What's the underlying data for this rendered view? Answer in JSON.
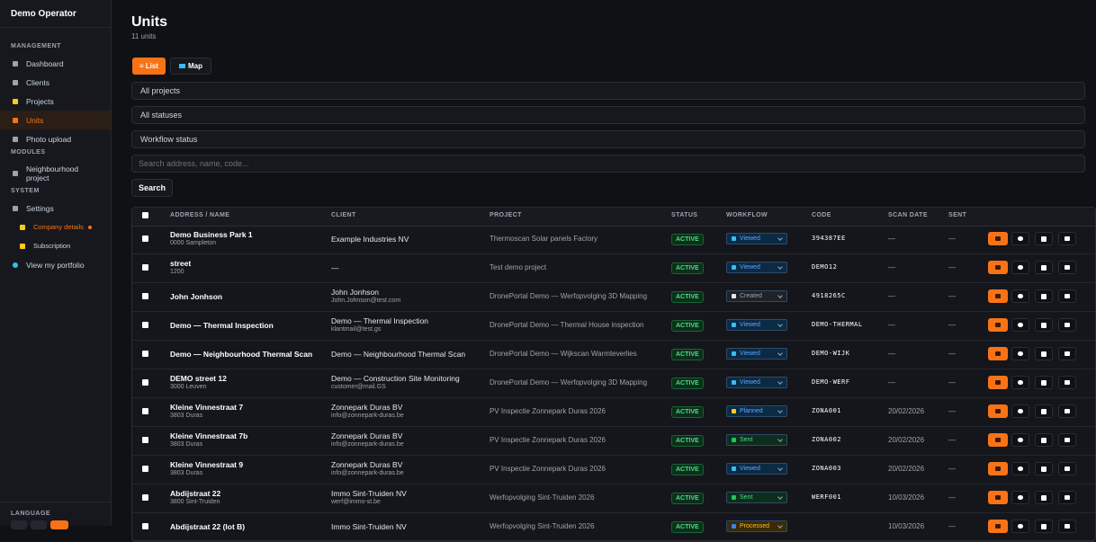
{
  "sidebar": {
    "brand": "Demo Operator",
    "sections": [
      {
        "title": "MANAGEMENT",
        "items": [
          "Dashboard",
          "Clients",
          "Projects",
          "Units",
          "Photo upload"
        ]
      },
      {
        "title": "MODULES",
        "items": [
          "Neighbourhood project"
        ]
      },
      {
        "title": "SYSTEM",
        "items": [
          "Settings",
          "Company details",
          "Subscription",
          "View my portfolio"
        ]
      }
    ],
    "language_label": "LANGUAGE"
  },
  "header": {
    "title": "Units",
    "subtitle": "11 units"
  },
  "view_toggle": [
    "List",
    "Map"
  ],
  "filters": {
    "project": "All projects",
    "status": "All statuses",
    "workflow": "Workflow status",
    "search_placeholder": "Search address, name, code...",
    "search_button": "Search"
  },
  "table": {
    "columns": [
      "ADDRESS / NAME",
      "CLIENT",
      "PROJECT",
      "STATUS",
      "WORKFLOW",
      "CODE",
      "SCAN DATE",
      "SENT"
    ],
    "rows": [
      {
        "address": "Demo Business Park 1",
        "locality": "0000 Sampleton",
        "client": "Example Industries NV",
        "project": "Thermoscan Solar panels Factory",
        "status": "ACTIVE",
        "workflow": "Viewed",
        "code": "394387EE",
        "scan_date": "—",
        "sent": "—"
      },
      {
        "address": "street",
        "locality": "1200",
        "client": "—",
        "project": "Test demo project",
        "status": "ACTIVE",
        "workflow": "Viewed",
        "code": "DEMO12",
        "scan_date": "—",
        "sent": "—"
      },
      {
        "address": "John Jonhson",
        "client": "John Jonhson",
        "client_email": "John.Johnson@test.com",
        "project": "DronePortal Demo — Werfopvolging 3D Mapping",
        "status": "ACTIVE",
        "workflow": "Created",
        "code": "4918265C",
        "scan_date": "—",
        "sent": "—"
      },
      {
        "address": "Demo — Thermal Inspection",
        "client": "Demo — Thermal Inspection",
        "client_email": "klantmail@test.gs",
        "project": "DronePortal Demo — Thermal House inspection",
        "status": "ACTIVE",
        "workflow": "Viewed",
        "code": "DEMO-THERMAL",
        "scan_date": "—",
        "sent": "—"
      },
      {
        "address": "Demo — Neighbourhood Thermal Scan",
        "client": "Demo — Neighbourhood Thermal Scan",
        "project": "DronePortal Demo — Wijkscan Warmteverlies",
        "status": "ACTIVE",
        "workflow": "Viewed",
        "code": "DEMO-WIJK",
        "scan_date": "—",
        "sent": "—"
      },
      {
        "address": "DEMO street 12",
        "locality": "3000 Leuven",
        "client": "Demo — Construction Site Monitoring",
        "client_email": "customer@mail.GS",
        "project": "DronePortal Demo — Werfopvolging 3D Mapping",
        "status": "ACTIVE",
        "workflow": "Viewed",
        "code": "DEMO-WERF",
        "scan_date": "—",
        "sent": "—"
      },
      {
        "address": "Kleine Vinnestraat 7",
        "locality": "3803 Duras",
        "client": "Zonnepark Duras BV",
        "client_email": "info@zonnepark-duras.be",
        "project": "PV Inspectie Zonnepark Duras 2026",
        "status": "ACTIVE",
        "workflow": "Planned",
        "code": "ZONA001",
        "scan_date": "20/02/2026",
        "sent": "—"
      },
      {
        "address": "Kleine Vinnestraat 7b",
        "locality": "3803 Duras",
        "client": "Zonnepark Duras BV",
        "client_email": "info@zonnepark-duras.be",
        "project": "PV Inspectie Zonnepark Duras 2026",
        "status": "ACTIVE",
        "workflow": "Sent",
        "code": "ZONA002",
        "scan_date": "20/02/2026",
        "sent": "—"
      },
      {
        "address": "Kleine Vinnestraat 9",
        "locality": "3803 Duras",
        "client": "Zonnepark Duras BV",
        "client_email": "info@zonnepark-duras.be",
        "project": "PV Inspectie Zonnepark Duras 2026",
        "status": "ACTIVE",
        "workflow": "Viewed",
        "code": "ZONA003",
        "scan_date": "20/02/2026",
        "sent": "—"
      },
      {
        "address": "Abdijstraat 22",
        "locality": "3800 Sint-Truiden",
        "client": "Immo Sint-Truiden NV",
        "client_email": "werf@immo-st.be",
        "project": "Werfopvolging Sint-Truiden 2026",
        "status": "ACTIVE",
        "workflow": "Sent",
        "code": "WERF001",
        "scan_date": "10/03/2026",
        "sent": "—"
      },
      {
        "address": "Abdijstraat 22 (lot B)",
        "client": "Immo Sint-Truiden NV",
        "project": "Werfopvolging Sint-Truiden 2026",
        "status": "ACTIVE",
        "workflow": "Processed",
        "scan_date": "10/03/2026",
        "sent": "—"
      }
    ]
  }
}
